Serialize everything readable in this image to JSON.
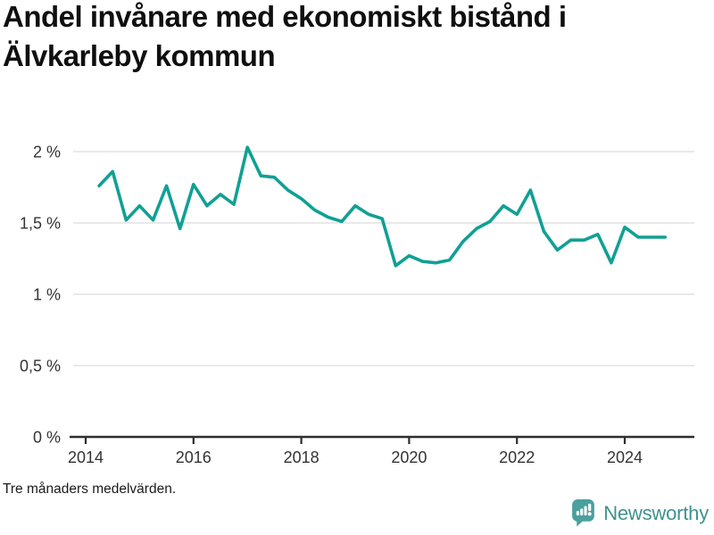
{
  "title": "Andel invånare med ekonomiskt bistånd i Älvkarleby kommun",
  "footnote": "Tre månaders medelvärden.",
  "branding": {
    "name": "Newsworthy",
    "icon": "newsworthy-speech-bubble-bar-chart-icon",
    "wordmark_color": "#3f918f",
    "icon_color": "#4aa09e"
  },
  "colors": {
    "line": "#11a094",
    "grid": "#e2e2e2",
    "axis": "#2e2e2e",
    "tick_text": "#333333",
    "title_text": "#0f0f0f"
  },
  "chart_data": {
    "type": "line",
    "title": "Andel invånare med ekonomiskt bistånd i Älvkarleby kommun",
    "subtitle": "Tre månaders medelvärden.",
    "series_name": "Andel invånare med ekonomiskt bistånd (%)",
    "unit": "%",
    "xlabel": "",
    "ylabel": "",
    "grid": true,
    "legend": "none",
    "xlim": [
      2013.77,
      2025.29
    ],
    "ylim": [
      0,
      2.15
    ],
    "x": [
      2014.25,
      2014.5,
      2014.75,
      2015.0,
      2015.25,
      2015.5,
      2015.75,
      2016.0,
      2016.25,
      2016.5,
      2016.75,
      2017.0,
      2017.25,
      2017.5,
      2017.75,
      2018.0,
      2018.25,
      2018.5,
      2018.75,
      2019.0,
      2019.25,
      2019.5,
      2019.75,
      2020.0,
      2020.25,
      2020.5,
      2020.75,
      2021.0,
      2021.25,
      2021.5,
      2021.75,
      2022.0,
      2022.25,
      2022.5,
      2022.75,
      2023.0,
      2023.25,
      2023.5,
      2023.75,
      2024.0,
      2024.25,
      2024.5,
      2024.75
    ],
    "values": [
      1.76,
      1.86,
      1.52,
      1.62,
      1.52,
      1.76,
      1.46,
      1.77,
      1.62,
      1.7,
      1.63,
      2.03,
      1.83,
      1.82,
      1.73,
      1.67,
      1.59,
      1.54,
      1.51,
      1.62,
      1.56,
      1.53,
      1.2,
      1.27,
      1.23,
      1.22,
      1.24,
      1.37,
      1.46,
      1.51,
      1.62,
      1.56,
      1.73,
      1.44,
      1.31,
      1.38,
      1.38,
      1.42,
      1.22,
      1.47,
      1.4,
      1.4,
      1.4
    ],
    "y_ticks": [
      {
        "value": 2.0,
        "label": "2 %"
      },
      {
        "value": 1.5,
        "label": "1,5 %"
      },
      {
        "value": 1.0,
        "label": "1 %"
      },
      {
        "value": 0.5,
        "label": "0,5 %"
      },
      {
        "value": 0.0,
        "label": "0 %"
      }
    ],
    "x_ticks": [
      {
        "value": 2014,
        "label": "2014"
      },
      {
        "value": 2016,
        "label": "2016"
      },
      {
        "value": 2018,
        "label": "2018"
      },
      {
        "value": 2020,
        "label": "2020"
      },
      {
        "value": 2022,
        "label": "2022"
      },
      {
        "value": 2024,
        "label": "2024"
      }
    ]
  }
}
